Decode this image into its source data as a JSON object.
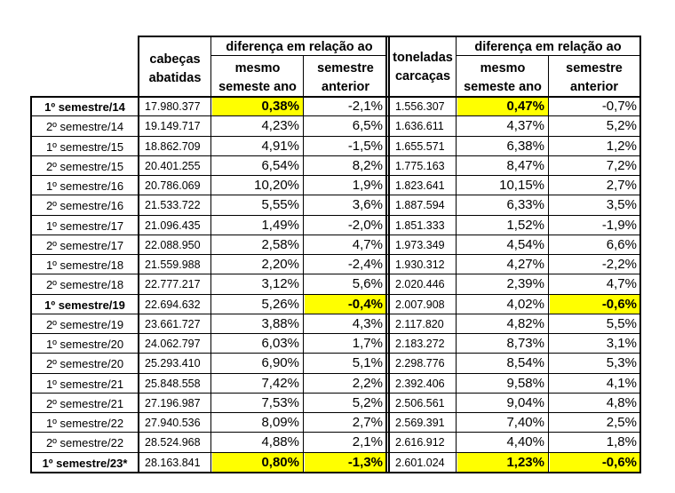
{
  "headers": {
    "heads": [
      "cabeças",
      "abatidas"
    ],
    "diff_group_1": "diferença em relação ao",
    "same_1": [
      "mesmo",
      "semeste ano"
    ],
    "prev_1": [
      "semestre",
      "anterior"
    ],
    "tons": [
      "toneladas",
      "carcaças"
    ],
    "diff_group_2": "diferença em relação ao",
    "same_2": [
      "mesmo",
      "semeste ano"
    ],
    "prev_2": [
      "semestre",
      "anterior"
    ]
  },
  "colors": {
    "highlight": "#ffff00",
    "border": "#000000"
  },
  "rows": [
    {
      "label": "1º semestre/14",
      "heads": "17.980.377",
      "same_a": "0,38%",
      "prev_a": "-2,1%",
      "tons": "1.556.307",
      "same_b": "0,47%",
      "prev_b": "-0,7%"
    },
    {
      "label": "2º semestre/14",
      "heads": "19.149.717",
      "same_a": "4,23%",
      "prev_a": "6,5%",
      "tons": "1.636.611",
      "same_b": "4,37%",
      "prev_b": "5,2%"
    },
    {
      "label": "1º semestre/15",
      "heads": "18.862.709",
      "same_a": "4,91%",
      "prev_a": "-1,5%",
      "tons": "1.655.571",
      "same_b": "6,38%",
      "prev_b": "1,2%"
    },
    {
      "label": "2º semestre/15",
      "heads": "20.401.255",
      "same_a": "6,54%",
      "prev_a": "8,2%",
      "tons": "1.775.163",
      "same_b": "8,47%",
      "prev_b": "7,2%"
    },
    {
      "label": "1º semestre/16",
      "heads": "20.786.069",
      "same_a": "10,20%",
      "prev_a": "1,9%",
      "tons": "1.823.641",
      "same_b": "10,15%",
      "prev_b": "2,7%"
    },
    {
      "label": "2º semestre/16",
      "heads": "21.533.722",
      "same_a": "5,55%",
      "prev_a": "3,6%",
      "tons": "1.887.594",
      "same_b": "6,33%",
      "prev_b": "3,5%"
    },
    {
      "label": "1º semestre/17",
      "heads": "21.096.435",
      "same_a": "1,49%",
      "prev_a": "-2,0%",
      "tons": "1.851.333",
      "same_b": "1,52%",
      "prev_b": "-1,9%"
    },
    {
      "label": "2º semestre/17",
      "heads": "22.088.950",
      "same_a": "2,58%",
      "prev_a": "4,7%",
      "tons": "1.973.349",
      "same_b": "4,54%",
      "prev_b": "6,6%"
    },
    {
      "label": "1º semestre/18",
      "heads": "21.559.988",
      "same_a": "2,20%",
      "prev_a": "-2,4%",
      "tons": "1.930.312",
      "same_b": "4,27%",
      "prev_b": "-2,2%"
    },
    {
      "label": "2º semestre/18",
      "heads": "22.777.217",
      "same_a": "3,12%",
      "prev_a": "5,6%",
      "tons": "2.020.446",
      "same_b": "2,39%",
      "prev_b": "4,7%"
    },
    {
      "label": "1º semestre/19",
      "heads": "22.694.632",
      "same_a": "5,26%",
      "prev_a": "-0,4%",
      "tons": "2.007.908",
      "same_b": "4,02%",
      "prev_b": "-0,6%"
    },
    {
      "label": "2º semestre/19",
      "heads": "23.661.727",
      "same_a": "3,88%",
      "prev_a": "4,3%",
      "tons": "2.117.820",
      "same_b": "4,82%",
      "prev_b": "5,5%"
    },
    {
      "label": "1º semestre/20",
      "heads": "24.062.797",
      "same_a": "6,03%",
      "prev_a": "1,7%",
      "tons": "2.183.272",
      "same_b": "8,73%",
      "prev_b": "3,1%"
    },
    {
      "label": "2º semestre/20",
      "heads": "25.293.410",
      "same_a": "6,90%",
      "prev_a": "5,1%",
      "tons": "2.298.776",
      "same_b": "8,54%",
      "prev_b": "5,3%"
    },
    {
      "label": "1º semestre/21",
      "heads": "25.848.558",
      "same_a": "7,42%",
      "prev_a": "2,2%",
      "tons": "2.392.406",
      "same_b": "9,58%",
      "prev_b": "4,1%"
    },
    {
      "label": "2º semestre/21",
      "heads": "27.196.987",
      "same_a": "7,53%",
      "prev_a": "5,2%",
      "tons": "2.506.561",
      "same_b": "9,04%",
      "prev_b": "4,8%"
    },
    {
      "label": "1º semestre/22",
      "heads": "27.940.536",
      "same_a": "8,09%",
      "prev_a": "2,7%",
      "tons": "2.569.391",
      "same_b": "7,40%",
      "prev_b": "2,5%"
    },
    {
      "label": "2º semestre/22",
      "heads": "28.524.968",
      "same_a": "4,88%",
      "prev_a": "2,1%",
      "tons": "2.616.912",
      "same_b": "4,40%",
      "prev_b": "1,8%"
    },
    {
      "label": "1º semestre/23*",
      "heads": "28.163.841",
      "same_a": "0,80%",
      "prev_a": "-1,3%",
      "tons": "2.601.024",
      "same_b": "1,23%",
      "prev_b": "-0,6%"
    }
  ],
  "bold_rows": [
    0,
    10,
    18
  ],
  "highlights": [
    {
      "row": 0,
      "cols": [
        "same_a",
        "same_b"
      ]
    },
    {
      "row": 10,
      "cols": [
        "prev_a",
        "prev_b"
      ]
    },
    {
      "row": 18,
      "cols": [
        "same_a",
        "prev_a",
        "same_b",
        "prev_b"
      ]
    }
  ]
}
